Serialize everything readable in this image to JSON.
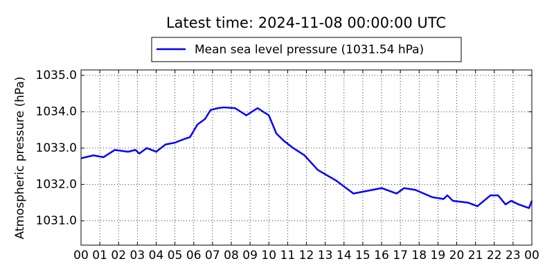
{
  "chart_data": {
    "type": "line",
    "title": "Latest time: 2024-11-08 00:00:00 UTC",
    "ylabel": "Atmospheric pressure (hPa)",
    "legend": "top",
    "grid": true,
    "series": [
      {
        "name": "Mean sea level pressure (1031.54 hPa)",
        "color": "#0000ff",
        "x": [
          0,
          0.66,
          1.2,
          1.8,
          2.5,
          2.9,
          3.1,
          3.5,
          4,
          4.5,
          5,
          5.5,
          5.8,
          6.2,
          6.6,
          6.9,
          7.3,
          7.6,
          8.2,
          8.8,
          9.4,
          10,
          10.4,
          10.8,
          11.3,
          11.9,
          12.6,
          13.6,
          14.5,
          16,
          16.8,
          17.2,
          17.8,
          18.7,
          19.3,
          19.5,
          19.8,
          20.6,
          21.1,
          21.8,
          22.2,
          22.6,
          22.9,
          23.3,
          23.85,
          24
        ],
        "values": [
          1032.72,
          1032.8,
          1032.75,
          1032.95,
          1032.9,
          1032.95,
          1032.85,
          1033.0,
          1032.9,
          1033.1,
          1033.15,
          1033.25,
          1033.3,
          1033.65,
          1033.8,
          1034.05,
          1034.1,
          1034.12,
          1034.1,
          1033.9,
          1034.1,
          1033.9,
          1033.4,
          1033.2,
          1033.0,
          1032.8,
          1032.4,
          1032.1,
          1031.75,
          1031.9,
          1031.75,
          1031.9,
          1031.85,
          1031.65,
          1031.6,
          1031.7,
          1031.55,
          1031.5,
          1031.4,
          1031.7,
          1031.7,
          1031.45,
          1031.55,
          1031.45,
          1031.35,
          1031.55
        ]
      }
    ],
    "xlim": [
      0,
      24
    ],
    "xticks": [
      {
        "value": 0,
        "label": "00"
      },
      {
        "value": 1,
        "label": "01"
      },
      {
        "value": 2,
        "label": "02"
      },
      {
        "value": 3,
        "label": "03"
      },
      {
        "value": 4,
        "label": "04"
      },
      {
        "value": 5,
        "label": "05"
      },
      {
        "value": 6,
        "label": "06"
      },
      {
        "value": 7,
        "label": "07"
      },
      {
        "value": 8,
        "label": "08"
      },
      {
        "value": 9,
        "label": "09"
      },
      {
        "value": 10,
        "label": "10"
      },
      {
        "value": 11,
        "label": "11"
      },
      {
        "value": 12,
        "label": "12"
      },
      {
        "value": 13,
        "label": "13"
      },
      {
        "value": 14,
        "label": "14"
      },
      {
        "value": 15,
        "label": "15"
      },
      {
        "value": 16,
        "label": "16"
      },
      {
        "value": 17,
        "label": "17"
      },
      {
        "value": 18,
        "label": "18"
      },
      {
        "value": 19,
        "label": "19"
      },
      {
        "value": 20,
        "label": "20"
      },
      {
        "value": 21,
        "label": "21"
      },
      {
        "value": 22,
        "label": "22"
      },
      {
        "value": 23,
        "label": "23"
      },
      {
        "value": 24,
        "label": "00"
      }
    ],
    "ylim": [
      1030.33,
      1035.15
    ],
    "yticks": [
      {
        "value": 1031,
        "label": "1031.0"
      },
      {
        "value": 1032,
        "label": "1032.0"
      },
      {
        "value": 1033,
        "label": "1033.0"
      },
      {
        "value": 1034,
        "label": "1034.0"
      },
      {
        "value": 1035,
        "label": "1035.0"
      }
    ]
  }
}
